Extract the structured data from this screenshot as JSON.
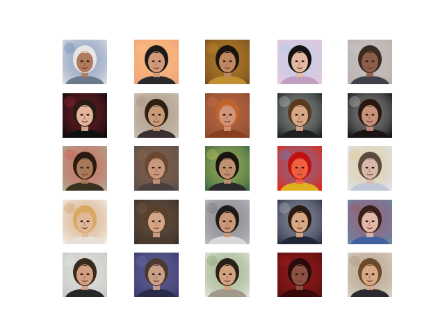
{
  "figure": {
    "background": "#ffffff",
    "rows": 5,
    "cols": 5,
    "tiles": [
      {
        "subject": "face-white-cap",
        "bg": "#d9dde4",
        "skin": "#b07a5c",
        "hair": "#e6e6e6",
        "top": "#6b7a8a",
        "accent": "#4a6aa0"
      },
      {
        "subject": "face-sunglasses",
        "bg": "#f2a27a",
        "skin": "#d29a78",
        "hair": "#1e1a1a",
        "top": "#2a2a2a",
        "accent": "#ffd080"
      },
      {
        "subject": "face-dark-curly",
        "bg": "#7a5020",
        "skin": "#c08860",
        "hair": "#1a1410",
        "top": "#c09030",
        "accent": "#e0a030"
      },
      {
        "subject": "face-black-bob",
        "bg": "#e8c8dc",
        "skin": "#e2b8a0",
        "hair": "#141214",
        "top": "#c0a0c0",
        "accent": "#a0d0f0"
      },
      {
        "subject": "face-bald-man",
        "bg": "#b8b0ac",
        "skin": "#8a5e48",
        "hair": "#3a2a20",
        "top": "#404048",
        "accent": "#d0d0d0"
      },
      {
        "subject": "face-dark-long-hair",
        "bg": "#0c0a0a",
        "skin": "#e2b49c",
        "hair": "#2a1a14",
        "top": "#101010",
        "accent": "#c03040"
      },
      {
        "subject": "face-man-bangs",
        "bg": "#c8c0b0",
        "skin": "#c89a78",
        "hair": "#2e1e14",
        "top": "#3a3030",
        "accent": "#a08070"
      },
      {
        "subject": "face-red-hair",
        "bg": "#8a4a30",
        "skin": "#d09478",
        "hair": "#c0642e",
        "top": "#8a4020",
        "accent": "#e08050"
      },
      {
        "subject": "face-brown-bob",
        "bg": "#18201c",
        "skin": "#d8a888",
        "hair": "#5a3a20",
        "top": "#202020",
        "accent": "#f0f0f0"
      },
      {
        "subject": "face-smile-dark-hair",
        "bg": "#121010",
        "skin": "#c8927a",
        "hair": "#2a1810",
        "top": "#1a1414",
        "accent": "#f0f0f0"
      },
      {
        "subject": "face-colorful-blur",
        "bg": "#b0a890",
        "skin": "#a87858",
        "hair": "#2a1a10",
        "top": "#3a3020",
        "accent": "#e04040"
      },
      {
        "subject": "face-long-brown",
        "bg": "#5a5048",
        "skin": "#c8987c",
        "hair": "#6a4830",
        "top": "#4a4040",
        "accent": "#a06a50"
      },
      {
        "subject": "face-man-stubble",
        "bg": "#3a6a40",
        "skin": "#c09070",
        "hair": "#1a1410",
        "top": "#2a2a2a",
        "accent": "#f0e070"
      },
      {
        "subject": "face-red-abstract",
        "bg": "#e02818",
        "skin": "#f06040",
        "hair": "#c01010",
        "top": "#e0b020",
        "accent": "#40a0f0"
      },
      {
        "subject": "face-pale-blurred",
        "bg": "#dfe2ea",
        "skin": "#d8b8a8",
        "hair": "#5a4a40",
        "top": "#c0c8d8",
        "accent": "#e0c070"
      },
      {
        "subject": "face-blond-man",
        "bg": "#f4eee8",
        "skin": "#e0b898",
        "hair": "#d8a860",
        "top": "#e8e0d8",
        "accent": "#c08040"
      },
      {
        "subject": "face-smiling-woman",
        "bg": "#3a3028",
        "skin": "#d4a688",
        "hair": "#5a4028",
        "top": "#4a3a30",
        "accent": "#8a6a50"
      },
      {
        "subject": "face-spiky-hair",
        "bg": "#b8b8c0",
        "skin": "#c89878",
        "hair": "#1e1a18",
        "top": "#d8d8d8",
        "accent": "#606060"
      },
      {
        "subject": "face-headband",
        "bg": "#2a3048",
        "skin": "#d8a884",
        "hair": "#2a1a14",
        "top": "#202838",
        "accent": "#e0e0e0"
      },
      {
        "subject": "face-brunette-fringe",
        "bg": "#6888a8",
        "skin": "#e2b8a8",
        "hair": "#3a2018",
        "top": "#4060a0",
        "accent": "#c04050"
      },
      {
        "subject": "face-smile-slick",
        "bg": "#c8c8c4",
        "skin": "#d2a080",
        "hair": "#3a2a1e",
        "top": "#282828",
        "accent": "#f0f0f0"
      },
      {
        "subject": "face-glasses-blue",
        "bg": "#3a3a6a",
        "skin": "#c8a088",
        "hair": "#4a3a30",
        "top": "#2a2a4a",
        "accent": "#8080c0"
      },
      {
        "subject": "face-tousled-hair",
        "bg": "#e0e4d8",
        "skin": "#d2a27e",
        "hair": "#2a2018",
        "top": "#a09888",
        "accent": "#6a8a4a"
      },
      {
        "subject": "face-dark-red",
        "bg": "#5a1010",
        "skin": "#8a5040",
        "hair": "#2a0a0a",
        "top": "#3a0808",
        "accent": "#c02020"
      },
      {
        "subject": "face-shaggy-hair",
        "bg": "#d8d0c4",
        "skin": "#d8a886",
        "hair": "#6a4a2a",
        "top": "#2a2a30",
        "accent": "#a08060"
      }
    ]
  }
}
